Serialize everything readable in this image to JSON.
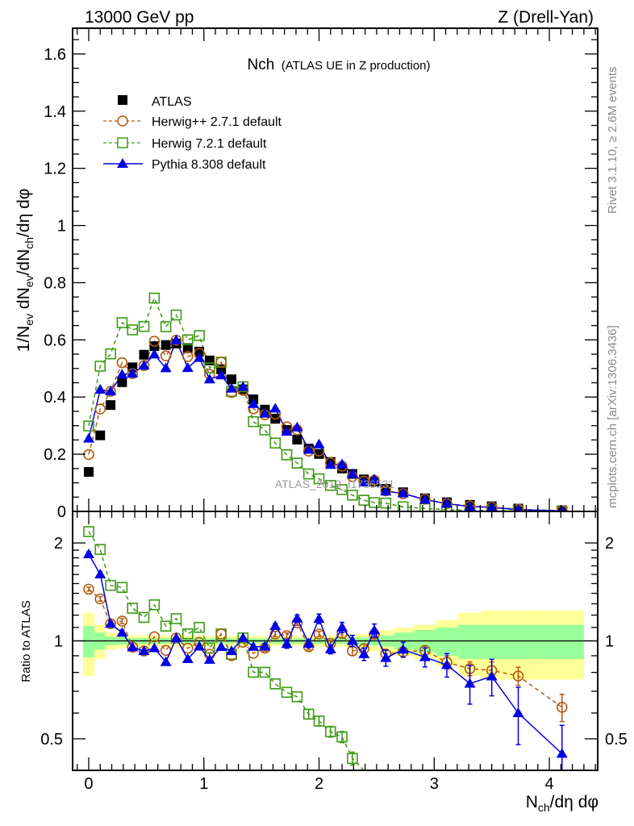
{
  "header": {
    "left": "13000 GeV pp",
    "right": "Z (Drell-Yan)"
  },
  "side_text": {
    "rivet": "Rivet 3.1.10, ≥ 2.6M events",
    "mcplots": "mcplots.cern.ch [arXiv:1306.3436]"
  },
  "watermark": "ATLAS_2019_I1736531",
  "colors": {
    "atlas": "#000000",
    "herwigpp": "#b35a10",
    "herwig7": "#3c9a13",
    "pythia": "#0000e6",
    "band_total": "#ffff99",
    "band_stat": "#99ff99"
  },
  "chart_data": {
    "type": "line",
    "title": "Nch",
    "subtitle": "(ATLAS UE in Z production)",
    "ylabel_parts": [
      "1/N",
      "ev",
      " dN",
      "ev",
      "/dN",
      "ch",
      "/dη dφ"
    ],
    "xlabel_parts": [
      "N",
      "ch",
      "/dη dφ"
    ],
    "ratio_ylabel": "Ratio to ATLAS",
    "xlim": [
      -0.14,
      4.42
    ],
    "ylim": [
      0,
      1.69
    ],
    "ratio_ylim": [
      0.4,
      2.5
    ],
    "ratio_scale": "log",
    "x_ticks": [
      "0",
      "1",
      "2",
      "3",
      "4"
    ],
    "y_ticks": [
      "0",
      "0.2",
      "0.4",
      "0.6",
      "0.8",
      "1",
      "1.2",
      "1.4",
      "1.6"
    ],
    "ratio_ticks": [
      "0.5",
      "1",
      "2"
    ],
    "legend_position": "top-left",
    "x": [
      0,
      0.1,
      0.19,
      0.29,
      0.38,
      0.48,
      0.57,
      0.67,
      0.76,
      0.86,
      0.96,
      1.05,
      1.15,
      1.24,
      1.34,
      1.43,
      1.53,
      1.62,
      1.72,
      1.81,
      1.91,
      2.0,
      2.1,
      2.2,
      2.29,
      2.39,
      2.48,
      2.58,
      2.73,
      2.92,
      3.11,
      3.31,
      3.5,
      3.73,
      4.11
    ],
    "band_total_rel": [
      0.22,
      0.12,
      0.06,
      0.05,
      0.04,
      0.04,
      0.04,
      0.04,
      0.04,
      0.04,
      0.04,
      0.035,
      0.035,
      0.035,
      0.035,
      0.035,
      0.035,
      0.035,
      0.035,
      0.035,
      0.035,
      0.04,
      0.04,
      0.04,
      0.05,
      0.05,
      0.07,
      0.08,
      0.1,
      0.12,
      0.16,
      0.22,
      0.24,
      0.24,
      0.24
    ],
    "band_stat_rel": [
      0.11,
      0.06,
      0.03,
      0.025,
      0.02,
      0.02,
      0.02,
      0.02,
      0.02,
      0.02,
      0.02,
      0.018,
      0.018,
      0.018,
      0.018,
      0.018,
      0.018,
      0.018,
      0.018,
      0.018,
      0.018,
      0.02,
      0.02,
      0.02,
      0.025,
      0.025,
      0.03,
      0.04,
      0.06,
      0.08,
      0.1,
      0.12,
      0.12,
      0.12,
      0.12
    ],
    "series": [
      {
        "name": "ATLAS",
        "key": "atlas",
        "marker": "filled-square",
        "values": [
          0.138,
          0.266,
          0.372,
          0.452,
          0.504,
          0.548,
          0.578,
          0.582,
          0.587,
          0.571,
          0.559,
          0.528,
          0.497,
          0.462,
          0.427,
          0.392,
          0.356,
          0.324,
          0.285,
          0.251,
          0.22,
          0.201,
          0.173,
          0.15,
          0.131,
          0.112,
          0.104,
          0.079,
          0.067,
          0.046,
          0.032,
          0.023,
          0.018,
          0.01,
          0.004
        ]
      },
      {
        "name": "Herwig++ 2.7.1 default",
        "key": "herwigpp",
        "marker": "open-circle",
        "line": "dashed",
        "values": [
          0.199,
          0.358,
          0.42,
          0.52,
          0.482,
          0.51,
          0.595,
          0.544,
          0.599,
          0.542,
          0.553,
          0.48,
          0.522,
          0.416,
          0.423,
          0.359,
          0.338,
          0.34,
          0.296,
          0.285,
          0.211,
          0.211,
          0.17,
          0.158,
          0.122,
          0.106,
          0.109,
          0.072,
          0.062,
          0.043,
          0.0275,
          0.0189,
          0.0146,
          0.0078,
          0.0025
        ],
        "ratio_err": [
          0.02,
          0.02,
          0.02,
          0.02,
          0.015,
          0.015,
          0.015,
          0.015,
          0.015,
          0.015,
          0.015,
          0.015,
          0.015,
          0.015,
          0.015,
          0.015,
          0.02,
          0.02,
          0.02,
          0.02,
          0.02,
          0.02,
          0.02,
          0.03,
          0.03,
          0.03,
          0.03,
          0.03,
          0.03,
          0.03,
          0.04,
          0.04,
          0.05,
          0.05,
          0.06
        ]
      },
      {
        "name": "Herwig 7.2.1 default",
        "key": "herwig7",
        "marker": "open-square",
        "line": "dashed",
        "values": [
          0.299,
          0.508,
          0.551,
          0.66,
          0.635,
          0.647,
          0.746,
          0.646,
          0.687,
          0.6,
          0.615,
          0.502,
          0.522,
          0.42,
          0.436,
          0.314,
          0.285,
          0.239,
          0.198,
          0.169,
          0.131,
          0.114,
          0.091,
          0.076,
          0.057,
          0.039,
          0.031,
          0.029,
          0.016,
          0.01,
          0.006,
          0.004,
          0.003,
          0.002,
          0.001
        ],
        "ratio_err": [
          0.01,
          0.01,
          0.01,
          0.01,
          0.01,
          0.01,
          0.01,
          0.01,
          0.01,
          0.01,
          0.01,
          0.01,
          0.01,
          0.01,
          0.01,
          0.01,
          0.01,
          0.01,
          0.015,
          0.015,
          0.02,
          0.02,
          0.02,
          0.02,
          0.02,
          0.03,
          0.03,
          0.03,
          0.03,
          0.03,
          0.03,
          0.03,
          0.03,
          0.03,
          0.03
        ]
      },
      {
        "name": "Pythia 8.308 default",
        "key": "pythia",
        "marker": "filled-triangle",
        "line": "solid",
        "values": [
          0.255,
          0.426,
          0.42,
          0.479,
          0.482,
          0.51,
          0.549,
          0.501,
          0.599,
          0.502,
          0.537,
          0.462,
          0.476,
          0.43,
          0.436,
          0.376,
          0.342,
          0.36,
          0.279,
          0.294,
          0.216,
          0.235,
          0.163,
          0.165,
          0.131,
          0.102,
          0.112,
          0.07,
          0.063,
          0.041,
          0.027,
          0.017,
          0.014,
          0.006,
          0.0018
        ],
        "ratio_err": [
          0.03,
          0.03,
          0.02,
          0.02,
          0.015,
          0.015,
          0.015,
          0.015,
          0.015,
          0.015,
          0.015,
          0.015,
          0.015,
          0.015,
          0.015,
          0.015,
          0.02,
          0.02,
          0.03,
          0.03,
          0.03,
          0.04,
          0.03,
          0.04,
          0.04,
          0.04,
          0.05,
          0.05,
          0.05,
          0.06,
          0.07,
          0.1,
          0.1,
          0.12,
          0.1
        ]
      }
    ]
  }
}
